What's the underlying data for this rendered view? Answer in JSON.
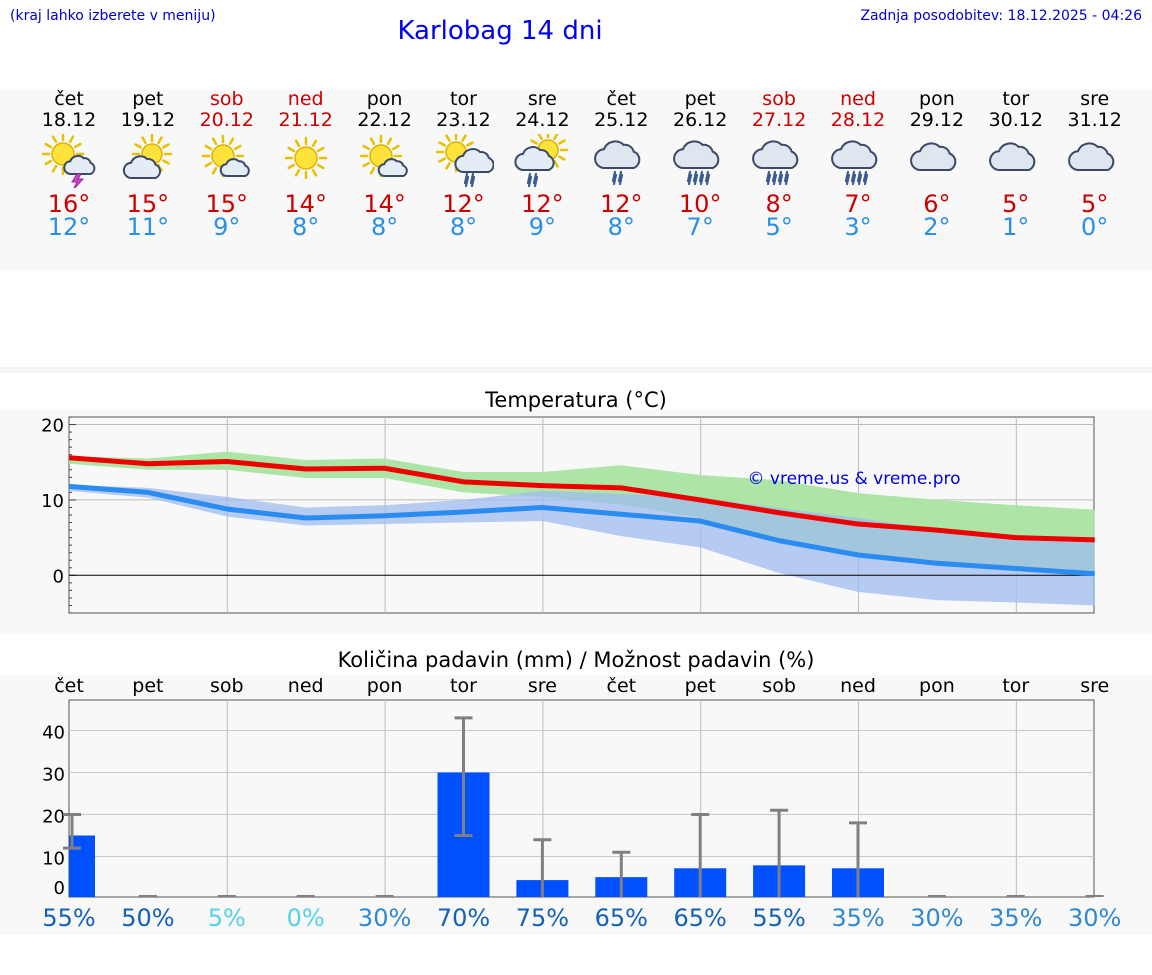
{
  "header": {
    "hint": "(kraj lahko izberete v meniju)",
    "title": "Karlobag 14 dni",
    "updated": "Zadnja posodobitev: 18.12.2025 - 04:26"
  },
  "days": [
    {
      "name": "čet",
      "date": "18.12",
      "icon": "sun-cloud-thunder-icon",
      "tmax": "16°",
      "tmin": "12°",
      "weekend": false
    },
    {
      "name": "pet",
      "date": "19.12",
      "icon": "sun-cloud-icon",
      "tmax": "15°",
      "tmin": "11°",
      "weekend": false
    },
    {
      "name": "sob",
      "date": "20.12",
      "icon": "sun-small-cloud-icon",
      "tmax": "15°",
      "tmin": "9°",
      "weekend": true
    },
    {
      "name": "ned",
      "date": "21.12",
      "icon": "sun-icon",
      "tmax": "14°",
      "tmin": "8°",
      "weekend": true
    },
    {
      "name": "pon",
      "date": "22.12",
      "icon": "sun-small-cloud-icon",
      "tmax": "14°",
      "tmin": "8°",
      "weekend": false
    },
    {
      "name": "tor",
      "date": "23.12",
      "icon": "sun-cloud-rain-icon",
      "tmax": "12°",
      "tmin": "8°",
      "weekend": false
    },
    {
      "name": "sre",
      "date": "24.12",
      "icon": "sun-cloud-light-rain-icon",
      "tmax": "12°",
      "tmin": "9°",
      "weekend": false
    },
    {
      "name": "čet",
      "date": "25.12",
      "icon": "cloud-rain-icon",
      "tmax": "12°",
      "tmin": "8°",
      "weekend": false
    },
    {
      "name": "pet",
      "date": "26.12",
      "icon": "cloud-heavy-rain-icon",
      "tmax": "10°",
      "tmin": "7°",
      "weekend": false
    },
    {
      "name": "sob",
      "date": "27.12",
      "icon": "cloud-heavy-rain-icon",
      "tmax": "8°",
      "tmin": "5°",
      "weekend": true
    },
    {
      "name": "ned",
      "date": "28.12",
      "icon": "cloud-heavy-rain-icon",
      "tmax": "7°",
      "tmin": "3°",
      "weekend": true
    },
    {
      "name": "pon",
      "date": "29.12",
      "icon": "cloud-icon",
      "tmax": "6°",
      "tmin": "2°",
      "weekend": false
    },
    {
      "name": "tor",
      "date": "30.12",
      "icon": "cloud-icon",
      "tmax": "5°",
      "tmin": "1°",
      "weekend": false
    },
    {
      "name": "sre",
      "date": "31.12",
      "icon": "cloud-icon",
      "tmax": "5°",
      "tmin": "0°",
      "weekend": false
    }
  ],
  "colors": {
    "max_line": "#ee0000",
    "max_band": "#a8e4a0",
    "min_line": "#2a8cf0",
    "min_band": "#9fbcf0",
    "bar": "#0050ff",
    "error": "#808080",
    "watermark": "#0000dd"
  },
  "chart_data": [
    {
      "type": "line",
      "title": "Temperatura (°C)",
      "watermark": "© vreme.us & vreme.pro",
      "ylim": [
        -5,
        21
      ],
      "yticks": [
        0,
        10,
        20
      ],
      "x": [
        0,
        1,
        2,
        3,
        4,
        5,
        6,
        7,
        8,
        9,
        10,
        11,
        12,
        13
      ],
      "series": [
        {
          "name": "max",
          "values": [
            15.6,
            14.8,
            15.1,
            14.1,
            14.2,
            12.4,
            11.9,
            11.6,
            10.0,
            8.3,
            6.8,
            6.0,
            5.0,
            4.7
          ],
          "band_low": [
            14.8,
            14.0,
            14.0,
            12.9,
            12.9,
            11.0,
            10.4,
            9.4,
            7.6,
            4.5,
            2.8,
            1.7,
            1.1,
            0.2
          ],
          "band_high": [
            15.8,
            15.5,
            16.4,
            15.3,
            15.5,
            13.7,
            13.7,
            14.6,
            13.3,
            12.6,
            10.9,
            10.0,
            9.3,
            8.7
          ]
        },
        {
          "name": "min",
          "values": [
            11.8,
            11.0,
            8.8,
            7.6,
            7.9,
            8.4,
            9.0,
            8.1,
            7.2,
            4.6,
            2.7,
            1.6,
            0.9,
            0.2
          ],
          "band_low": [
            11.2,
            10.3,
            7.8,
            6.6,
            6.8,
            7.0,
            7.2,
            5.2,
            3.7,
            0.3,
            -2.2,
            -3.3,
            -3.6,
            -4.0
          ],
          "band_high": [
            12.0,
            11.6,
            10.4,
            9.0,
            9.3,
            10.0,
            11.2,
            10.8,
            10.3,
            8.9,
            7.6,
            6.1,
            5.3,
            4.6
          ]
        }
      ]
    },
    {
      "type": "bar",
      "title": "Količina padavin (mm) / Možnost padavin (%)",
      "categories": [
        "čet",
        "pet",
        "sob",
        "ned",
        "pon",
        "tor",
        "sre",
        "čet",
        "pet",
        "sob",
        "ned",
        "pon",
        "tor",
        "sre"
      ],
      "values": [
        15,
        0,
        0,
        0,
        0,
        30,
        2,
        3,
        6,
        7,
        6,
        0,
        0,
        0
      ],
      "error_low": [
        12,
        0,
        0,
        0,
        0,
        15,
        0,
        0,
        0,
        0,
        0,
        0,
        0,
        0
      ],
      "error_high": [
        20,
        0,
        0,
        0,
        0,
        43,
        14,
        11,
        20,
        21,
        18,
        0,
        0,
        0
      ],
      "yticks": [
        0,
        10,
        20,
        30,
        40
      ],
      "ylim": [
        0,
        45
      ],
      "probability": [
        "55%",
        "50%",
        "5%",
        "0%",
        "30%",
        "70%",
        "75%",
        "65%",
        "65%",
        "55%",
        "35%",
        "30%",
        "35%",
        "30%"
      ],
      "probability_colors": [
        "#1560b8",
        "#1560b8",
        "#55d0e6",
        "#55d0e6",
        "#2f88d0",
        "#1560b8",
        "#1560b8",
        "#1560b8",
        "#1560b8",
        "#1560b8",
        "#2f88d0",
        "#2f88d0",
        "#2f88d0",
        "#2f88d0"
      ]
    }
  ]
}
